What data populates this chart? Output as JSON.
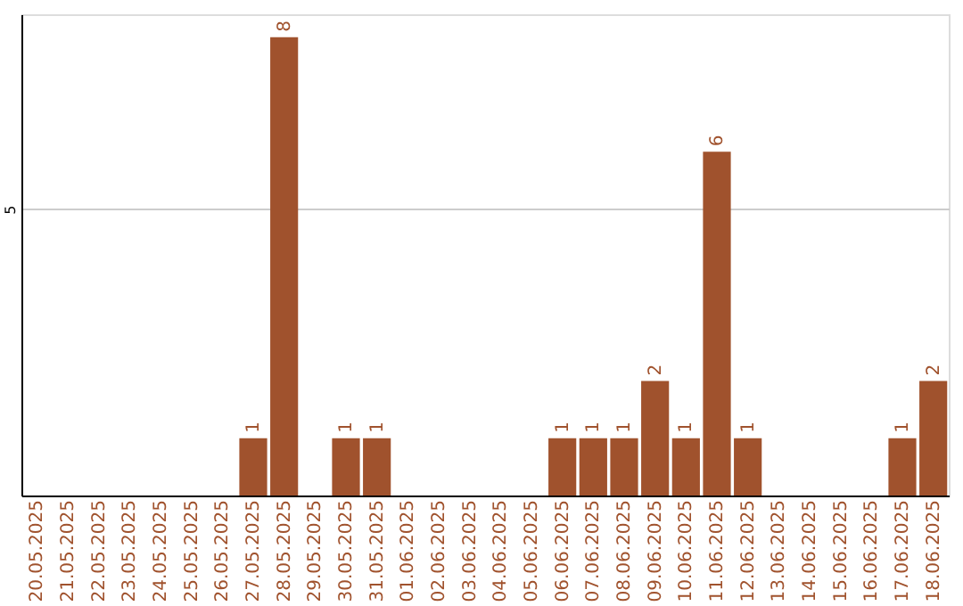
{
  "chart_data": {
    "type": "bar",
    "categories": [
      "20.05.2025",
      "21.05.2025",
      "22.05.2025",
      "23.05.2025",
      "24.05.2025",
      "25.05.2025",
      "26.05.2025",
      "27.05.2025",
      "28.05.2025",
      "29.05.2025",
      "30.05.2025",
      "31.05.2025",
      "01.06.2025",
      "02.06.2025",
      "03.06.2025",
      "04.06.2025",
      "05.06.2025",
      "06.06.2025",
      "07.06.2025",
      "08.06.2025",
      "09.06.2025",
      "10.06.2025",
      "11.06.2025",
      "12.06.2025",
      "13.06.2025",
      "14.06.2025",
      "15.06.2025",
      "16.06.2025",
      "17.06.2025",
      "18.06.2025"
    ],
    "values": [
      0,
      0,
      0,
      0,
      0,
      0,
      0,
      1,
      8,
      0,
      1,
      1,
      0,
      0,
      0,
      0,
      0,
      1,
      1,
      1,
      2,
      1,
      6,
      1,
      0,
      0,
      0,
      0,
      1,
      2
    ],
    "value_labels": [
      null,
      null,
      null,
      null,
      null,
      null,
      null,
      "1",
      "8",
      null,
      "1",
      "1",
      null,
      null,
      null,
      null,
      null,
      "1",
      "1",
      "1",
      "2",
      "1",
      "6",
      "1",
      null,
      null,
      null,
      null,
      "1",
      "2"
    ],
    "color": "#a0522d",
    "ylim": [
      0,
      8.4
    ],
    "yticks": [
      5
    ],
    "grid": "y"
  }
}
